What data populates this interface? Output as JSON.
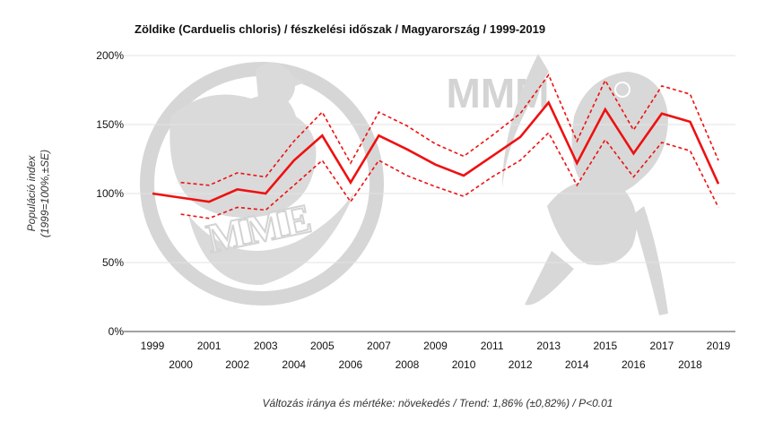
{
  "chart_data": {
    "type": "line",
    "title": "Zöldike (Carduelis chloris) / fészkelési időszak / Magyarország / 1999-2019",
    "ylabel_line1": "Populáció index",
    "ylabel_line2": "(1999=100%,±SE)",
    "xlabel": "",
    "x": [
      1999,
      2000,
      2001,
      2002,
      2003,
      2004,
      2005,
      2006,
      2007,
      2008,
      2009,
      2010,
      2011,
      2012,
      2013,
      2014,
      2015,
      2016,
      2017,
      2018,
      2019
    ],
    "x_tick_labels": [
      "1999",
      "2000",
      "2001",
      "2002",
      "2003",
      "2004",
      "2005",
      "2006",
      "2007",
      "2008",
      "2009",
      "2010",
      "2011",
      "2012",
      "2013",
      "2014",
      "2015",
      "2016",
      "2017",
      "2018",
      "2019"
    ],
    "y_ticks": [
      0,
      50,
      100,
      150,
      200
    ],
    "y_tick_labels": [
      "0%",
      "50%",
      "100%",
      "150%",
      "200%"
    ],
    "ylim": [
      0,
      200
    ],
    "grid": true,
    "series": [
      {
        "values": [
          100,
          97,
          94,
          103,
          100,
          124,
          142,
          108,
          142,
          132,
          121,
          113,
          127,
          141,
          166,
          122,
          161,
          129,
          158,
          152,
          107
        ],
        "color": "#ee1111",
        "style": "solid"
      },
      {
        "values": [
          null,
          108,
          106,
          115,
          112,
          138,
          159,
          122,
          159,
          149,
          136,
          127,
          142,
          158,
          186,
          138,
          182,
          146,
          178,
          172,
          124
        ],
        "color": "#ee1111",
        "style": "dashed"
      },
      {
        "values": [
          null,
          85,
          82,
          90,
          88,
          106,
          124,
          94,
          124,
          113,
          105,
          98,
          112,
          124,
          144,
          106,
          139,
          112,
          137,
          131,
          90
        ],
        "color": "#ee1111",
        "style": "dashed"
      }
    ],
    "footer": "Változás iránya és mértéke: növekedés / Trend: 1,86% (±0,82%) / P<0.01"
  },
  "watermark": {
    "mmm_text": "MMM",
    "mme_text": "MME",
    "color": "#cfcfcf"
  }
}
